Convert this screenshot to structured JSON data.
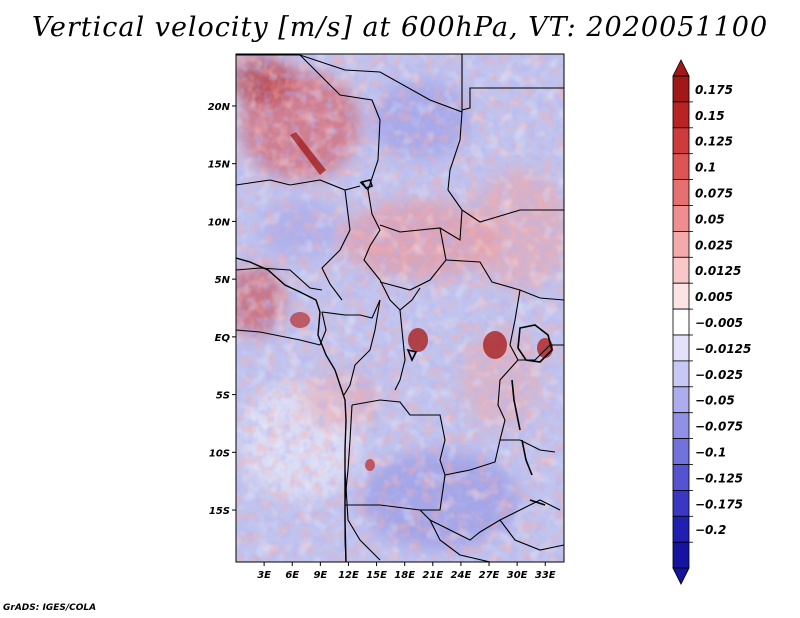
{
  "title": "Vertical velocity [m/s] at 600hPa, VT: 2020051100",
  "footer": "GrADS: IGES/COLA",
  "map": {
    "region": "Central Africa",
    "lat_labels": [
      "20N",
      "15N",
      "10N",
      "5N",
      "EQ",
      "5S",
      "10S",
      "15S"
    ],
    "lat_values": [
      20,
      15,
      10,
      5,
      0,
      -5,
      -10,
      -15
    ],
    "lon_labels": [
      "3E",
      "6E",
      "9E",
      "12E",
      "15E",
      "18E",
      "21E",
      "24E",
      "27E",
      "30E",
      "33E"
    ],
    "lon_values": [
      3,
      6,
      9,
      12,
      15,
      18,
      21,
      24,
      27,
      30,
      33
    ],
    "lon_range": [
      0,
      35
    ],
    "lat_range": [
      -19.5,
      24.5
    ],
    "field": "Vertical velocity",
    "units": "m/s",
    "level": "600hPa",
    "valid_time": "2020051100"
  },
  "colorbar": {
    "labels": [
      "0.175",
      "0.15",
      "0.125",
      "0.1",
      "0.075",
      "0.05",
      "0.025",
      "0.0125",
      "0.005",
      "−0.005",
      "−0.0125",
      "−0.025",
      "−0.05",
      "−0.075",
      "−0.1",
      "−0.125",
      "−0.175",
      "−0.2"
    ],
    "colors": [
      "#a01818",
      "#b82424",
      "#cf3a3a",
      "#dc5454",
      "#e67070",
      "#ee8e8e",
      "#f4aaaa",
      "#f8c8c8",
      "#fce4e4",
      "#ffffff",
      "#e2e2fa",
      "#c8c8f4",
      "#acacee",
      "#9090e6",
      "#7272dc",
      "#5454d0",
      "#3838c2",
      "#2020b0",
      "#1414a0"
    ]
  },
  "palette": {
    "map_background": "#c0c4ee",
    "border_color": "#000000"
  }
}
